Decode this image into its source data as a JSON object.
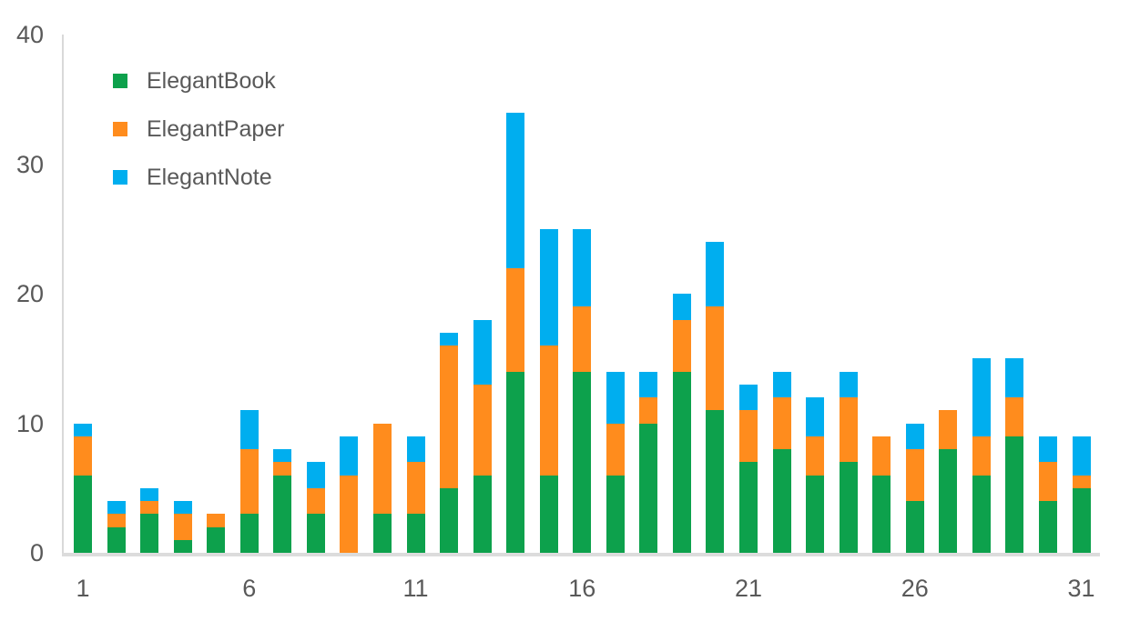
{
  "chart_data": {
    "type": "bar",
    "stacked": true,
    "title": "",
    "xlabel": "",
    "ylabel": "",
    "ylim": [
      0,
      40
    ],
    "y_ticks": [
      0,
      10,
      20,
      30,
      40
    ],
    "x_ticks_shown": [
      1,
      6,
      11,
      16,
      21,
      26,
      31
    ],
    "grid": false,
    "legend_position": "top-left-inside",
    "categories": [
      1,
      2,
      3,
      4,
      5,
      6,
      7,
      8,
      9,
      10,
      11,
      12,
      13,
      14,
      15,
      16,
      17,
      18,
      19,
      20,
      21,
      22,
      23,
      24,
      25,
      26,
      27,
      28,
      29,
      30,
      31
    ],
    "series": [
      {
        "name": "ElegantBook",
        "color": "#0da14c",
        "values": [
          6,
          2,
          3,
          1,
          2,
          3,
          6,
          3,
          0,
          3,
          3,
          5,
          6,
          14,
          6,
          14,
          6,
          10,
          14,
          11,
          7,
          8,
          6,
          7,
          6,
          4,
          8,
          6,
          9,
          4,
          5
        ]
      },
      {
        "name": "ElegantPaper",
        "color": "#ff8c1d",
        "values": [
          3,
          1,
          1,
          2,
          1,
          5,
          1,
          2,
          6,
          7,
          4,
          11,
          7,
          8,
          10,
          5,
          4,
          2,
          4,
          8,
          4,
          4,
          3,
          5,
          3,
          4,
          3,
          3,
          3,
          3,
          1
        ]
      },
      {
        "name": "ElegantNote",
        "color": "#00aeef",
        "values": [
          1,
          1,
          1,
          1,
          0,
          3,
          1,
          2,
          3,
          0,
          2,
          1,
          5,
          12,
          9,
          6,
          4,
          2,
          2,
          5,
          2,
          2,
          3,
          2,
          0,
          2,
          0,
          6,
          3,
          2,
          3
        ]
      }
    ],
    "colors": {
      "axis_line": "#d9d9d9",
      "tick_label": "#595959"
    }
  }
}
